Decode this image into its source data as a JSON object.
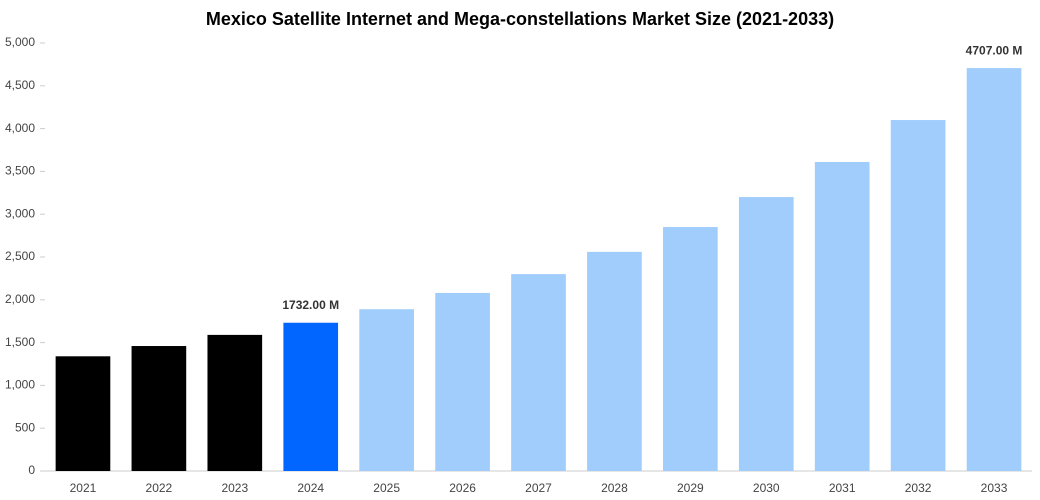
{
  "chart_data": {
    "type": "bar",
    "title": "Mexico Satellite Internet and Mega-constellations Market Size (2021-2033)",
    "categories": [
      "2021",
      "2022",
      "2023",
      "2024",
      "2025",
      "2026",
      "2027",
      "2028",
      "2029",
      "2030",
      "2031",
      "2032",
      "2033"
    ],
    "values": [
      1340,
      1460,
      1590,
      1732,
      1890,
      2080,
      2300,
      2560,
      2850,
      3200,
      3610,
      4100,
      4707
    ],
    "value_labels": [
      null,
      null,
      null,
      "1732.00 M",
      null,
      null,
      null,
      null,
      null,
      null,
      null,
      null,
      "4707.00 M"
    ],
    "colors": [
      "#000000",
      "#000000",
      "#000000",
      "#0066ff",
      "#a0cdfc",
      "#a0cdfc",
      "#a0cdfc",
      "#a0cdfc",
      "#a0cdfc",
      "#a0cdfc",
      "#a0cdfc",
      "#a0cdfc",
      "#a0cdfc"
    ],
    "ylim": [
      0,
      5000
    ],
    "yticks": [
      0,
      500,
      {
        "value": 1000,
        "label": "1,000"
      },
      {
        "value": 1500,
        "label": "1,500"
      },
      {
        "value": 2000,
        "label": "2,000"
      },
      {
        "value": 2500,
        "label": "2,500"
      },
      {
        "value": 3000,
        "label": "3,000"
      },
      {
        "value": 3500,
        "label": "3,500"
      },
      {
        "value": 4000,
        "label": "4,000"
      },
      {
        "value": 4500,
        "label": "4,500"
      },
      {
        "value": 5000,
        "label": "5,000"
      }
    ],
    "grid": false
  }
}
